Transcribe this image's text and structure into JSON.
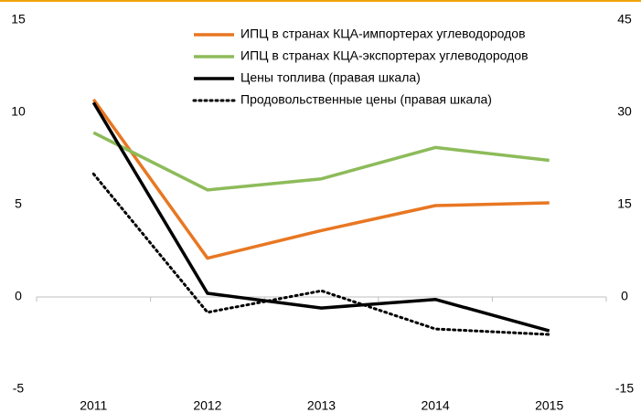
{
  "chart_data": {
    "type": "line",
    "categories": [
      "2011",
      "2012",
      "2013",
      "2014",
      "2015"
    ],
    "series": [
      {
        "name": "ИПЦ в странах КЦА-импортерах углеводородов",
        "color": "#e87722",
        "style": "solid",
        "values": [
          10.7,
          2.1,
          3.6,
          4.95,
          5.1
        ]
      },
      {
        "name": "ИПЦ в странах КЦА-экспортерах углеводородов",
        "color": "#8dbb5a",
        "style": "solid",
        "values": [
          8.9,
          5.8,
          6.4,
          8.1,
          7.4
        ]
      },
      {
        "name": "Цены топлива (правая шкала)",
        "color": "#000000",
        "style": "solid",
        "axis": "y2",
        "values": [
          31.6,
          0.6,
          -1.8,
          -0.4,
          -5.5
        ]
      },
      {
        "name": "Продовольственные  цены (правая шкала)",
        "color": "#000000",
        "style": "dotted",
        "axis": "y2",
        "values": [
          20.0,
          -2.5,
          1.0,
          -5.2,
          -6.1
        ]
      }
    ],
    "ylim": [
      -5,
      15
    ],
    "yticks": [
      -5,
      0,
      5,
      10,
      15
    ],
    "y2lim": [
      -15,
      45
    ],
    "y2ticks": [
      -15,
      0,
      15,
      30,
      45
    ],
    "legend": "top"
  }
}
